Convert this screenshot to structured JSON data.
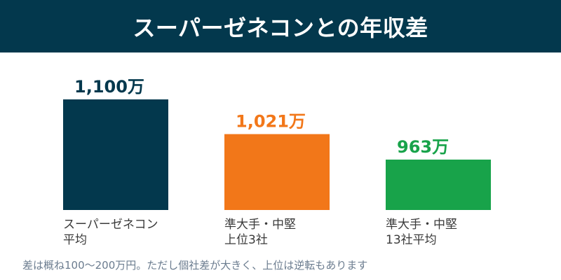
{
  "header": {
    "title": "スーパーゼネコンとの年収差"
  },
  "colors": {
    "header_bg": "#03384d",
    "super": "#03384d",
    "upper3": "#f27719",
    "avg13": "#18a34a"
  },
  "chart_data": {
    "type": "bar",
    "title": "スーパーゼネコンとの年収差",
    "unit": "万",
    "categories": [
      [
        "スーパーゼネコン",
        "平均"
      ],
      [
        "準大手・中堅",
        "上位3社"
      ],
      [
        "準大手・中堅",
        "13社平均"
      ]
    ],
    "values": [
      1100,
      1021,
      963
    ],
    "value_labels": [
      "1,100万",
      "1,021万",
      "963万"
    ],
    "colors": [
      "#03384d",
      "#f27719",
      "#18a34a"
    ],
    "ylim": [
      0,
      1100
    ],
    "grid": false,
    "legend": "none"
  },
  "footnote": "差は概ね100〜200万円。ただし個社差が大きく、上位は逆転もあります"
}
